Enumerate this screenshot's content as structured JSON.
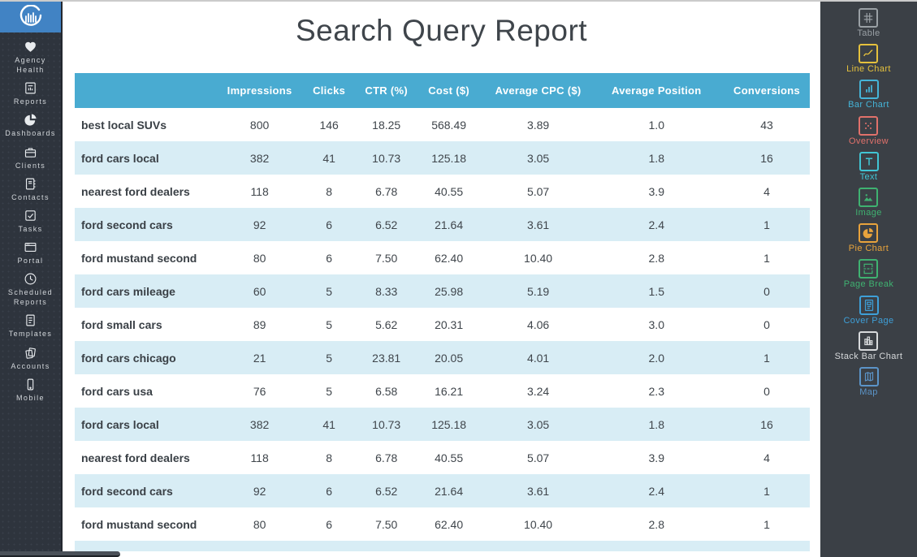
{
  "colors": {
    "header_bg": "#49abd1",
    "row_stripe": "#d8edf5",
    "left_sidebar_bg": "#2e343d",
    "right_sidebar_bg": "#3b4046",
    "logo_bg": "#4183c4",
    "title_color": "#3f454b"
  },
  "left_sidebar": {
    "items": [
      {
        "label": "Agency Health",
        "icon": "heart-icon"
      },
      {
        "label": "Reports",
        "icon": "report-icon"
      },
      {
        "label": "Dashboards",
        "icon": "pie-icon"
      },
      {
        "label": "Clients",
        "icon": "briefcase-icon"
      },
      {
        "label": "Contacts",
        "icon": "address-book-icon"
      },
      {
        "label": "Tasks",
        "icon": "checkbox-icon"
      },
      {
        "label": "Portal",
        "icon": "browser-icon"
      },
      {
        "label": "Scheduled Reports",
        "icon": "clock-icon"
      },
      {
        "label": "Templates",
        "icon": "document-icon"
      },
      {
        "label": "Accounts",
        "icon": "stack-icon"
      },
      {
        "label": "Mobile",
        "icon": "phone-icon"
      }
    ]
  },
  "main": {
    "title": "Search Query Report",
    "table": {
      "headers": [
        "",
        "Impressions",
        "Clicks",
        "CTR (%)",
        "Cost ($)",
        "Average CPC ($)",
        "Average Position",
        "Conversions"
      ],
      "rows": [
        [
          "best local SUVs",
          "800",
          "146",
          "18.25",
          "568.49",
          "3.89",
          "1.0",
          "43"
        ],
        [
          "ford cars local",
          "382",
          "41",
          "10.73",
          "125.18",
          "3.05",
          "1.8",
          "16"
        ],
        [
          "nearest ford dealers",
          "118",
          "8",
          "6.78",
          "40.55",
          "5.07",
          "3.9",
          "4"
        ],
        [
          "ford second cars",
          "92",
          "6",
          "6.52",
          "21.64",
          "3.61",
          "2.4",
          "1"
        ],
        [
          "ford mustand second",
          "80",
          "6",
          "7.50",
          "62.40",
          "10.40",
          "2.8",
          "1"
        ],
        [
          "ford cars mileage",
          "60",
          "5",
          "8.33",
          "25.98",
          "5.19",
          "1.5",
          "0"
        ],
        [
          "ford small cars",
          "89",
          "5",
          "5.62",
          "20.31",
          "4.06",
          "3.0",
          "0"
        ],
        [
          "ford cars chicago",
          "21",
          "5",
          "23.81",
          "20.05",
          "4.01",
          "2.0",
          "1"
        ],
        [
          "ford cars usa",
          "76",
          "5",
          "6.58",
          "16.21",
          "3.24",
          "2.3",
          "0"
        ],
        [
          "ford cars local",
          "382",
          "41",
          "10.73",
          "125.18",
          "3.05",
          "1.8",
          "16"
        ],
        [
          "nearest ford dealers",
          "118",
          "8",
          "6.78",
          "40.55",
          "5.07",
          "3.9",
          "4"
        ],
        [
          "ford second cars",
          "92",
          "6",
          "6.52",
          "21.64",
          "3.61",
          "2.4",
          "1"
        ],
        [
          "ford mustand second",
          "80",
          "6",
          "7.50",
          "62.40",
          "10.40",
          "2.8",
          "1"
        ]
      ]
    }
  },
  "right_sidebar": {
    "items": [
      {
        "label": "Table",
        "color": "#9aa0a5",
        "icon": "table-icon"
      },
      {
        "label": "Line Chart",
        "color": "#e5c13d",
        "icon": "line-chart-icon"
      },
      {
        "label": "Bar Chart",
        "color": "#45b4d8",
        "icon": "bar-chart-icon"
      },
      {
        "label": "Overview",
        "color": "#e0716b",
        "icon": "overview-icon"
      },
      {
        "label": "Text",
        "color": "#41c5d4",
        "icon": "text-icon"
      },
      {
        "label": "Image",
        "color": "#3fb271",
        "icon": "image-icon"
      },
      {
        "label": "Pie Chart",
        "color": "#e8a33c",
        "icon": "pie-chart-icon"
      },
      {
        "label": "Page Break",
        "color": "#3fb271",
        "icon": "page-break-icon"
      },
      {
        "label": "Cover Page",
        "color": "#3e9fd8",
        "icon": "cover-page-icon"
      },
      {
        "label": "Stack Bar Chart",
        "color": "#d7dadc",
        "icon": "stack-bar-chart-icon"
      },
      {
        "label": "Map",
        "color": "#5b94c8",
        "icon": "map-icon"
      }
    ]
  }
}
